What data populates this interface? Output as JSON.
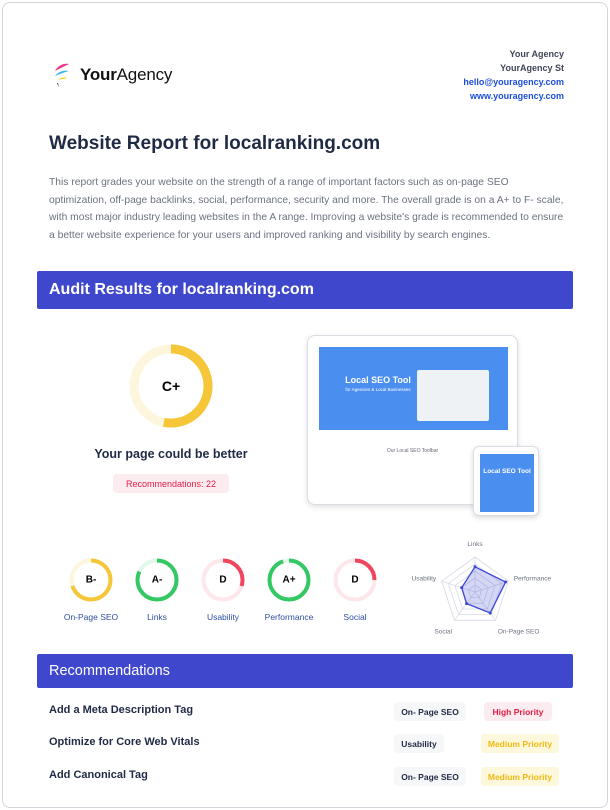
{
  "header": {
    "logo": {
      "bold": "Your",
      "rest": "Agency"
    },
    "contact": {
      "name": "Your Agency",
      "street": "YourAgency St",
      "email": "hello@youragency.com",
      "website": "www.youragency.com"
    }
  },
  "report": {
    "title": "Website Report for localranking.com",
    "intro": "This report grades your website on the strength of a range of important factors such as on-page SEO optimization, off-page backlinks, social, performance, security and more. The overall grade is on a A+ to F- scale, with most major industry leading websites in the A range. Improving a website's grade is recommended to ensure a better website experience for your users and improved ranking and visibility by search engines."
  },
  "audit": {
    "heading": "Audit Results for localranking.com",
    "overall": {
      "grade": "C+",
      "fill": 0.53,
      "color": "#f5c638",
      "track": "#fdf6dc"
    },
    "verdict": "Your page could be better",
    "recommendations_badge": "Recommendations: 22",
    "mockup": {
      "hero_title": "Local SEO Tool",
      "hero_sub": "for Agencies & Local Businesses",
      "toolbar": "Our Local SEO Toolbar",
      "phone_title": "Local SEO Tool"
    },
    "categories": [
      {
        "label": "On-Page SEO",
        "grade": "B-",
        "fill": 0.7,
        "color": "#f5c638",
        "track": "#fdf6dc"
      },
      {
        "label": "Links",
        "grade": "A-",
        "fill": 0.82,
        "color": "#34c865",
        "track": "#e3f8e9"
      },
      {
        "label": "Usability",
        "grade": "D",
        "fill": 0.3,
        "color": "#f0455f",
        "track": "#fde7eb"
      },
      {
        "label": "Performance",
        "grade": "A+",
        "fill": 0.95,
        "color": "#34c865",
        "track": "#e3f8e9"
      },
      {
        "label": "Social",
        "grade": "D",
        "fill": 0.25,
        "color": "#f0455f",
        "track": "#fde7eb"
      }
    ]
  },
  "chart_data": {
    "type": "radar",
    "axes": [
      "Links",
      "Performance",
      "On-Page SEO",
      "Social",
      "Usability"
    ],
    "values": [
      0.72,
      0.92,
      0.74,
      0.41,
      0.4
    ],
    "range": [
      0,
      1
    ],
    "color": "#3b45d6"
  },
  "recommendations": {
    "heading": "Recommendations",
    "items": [
      {
        "title": "Add a Meta Description Tag",
        "category": "On- Page SEO",
        "priority": "High Priority",
        "priority_level": "high"
      },
      {
        "title": "Optimize for Core Web Vitals",
        "category": "Usability",
        "priority": "Medium Priority",
        "priority_level": "medium"
      },
      {
        "title": "Add Canonical Tag",
        "category": "On- Page SEO",
        "priority": "Medium Priority",
        "priority_level": "medium"
      }
    ]
  },
  "colors": {
    "accent": "#3f48cc",
    "high": "#e11d48",
    "high_bg": "#fdecef",
    "medium": "#f0b80f",
    "medium_bg": "#fdf8dc"
  }
}
